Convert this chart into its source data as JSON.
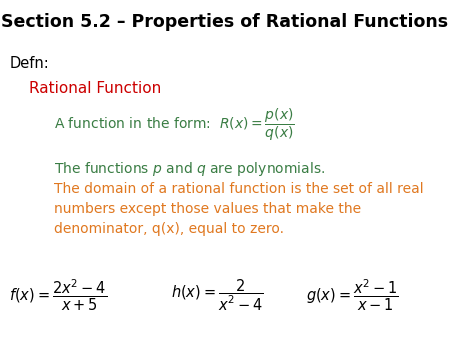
{
  "title": "Section 5.2 – Properties of Rational Functions",
  "title_bg": "#c5dfe8",
  "title_color": "#000000",
  "title_fontsize": 12.5,
  "defn_label": "Defn:",
  "defn_color": "#000000",
  "defn_fontsize": 10.5,
  "rational_function_label": "Rational Function",
  "rational_function_color": "#cc0000",
  "rational_function_fontsize": 11,
  "line1_color": "#3a7d44",
  "line1_fontsize": 10,
  "line2_color": "#3a7d44",
  "line2_fontsize": 10,
  "line3_color": "#e07820",
  "line3_fontsize": 10,
  "bg_color": "#ffffff",
  "formula_color": "#000000",
  "formula_fontsize": 10.5
}
